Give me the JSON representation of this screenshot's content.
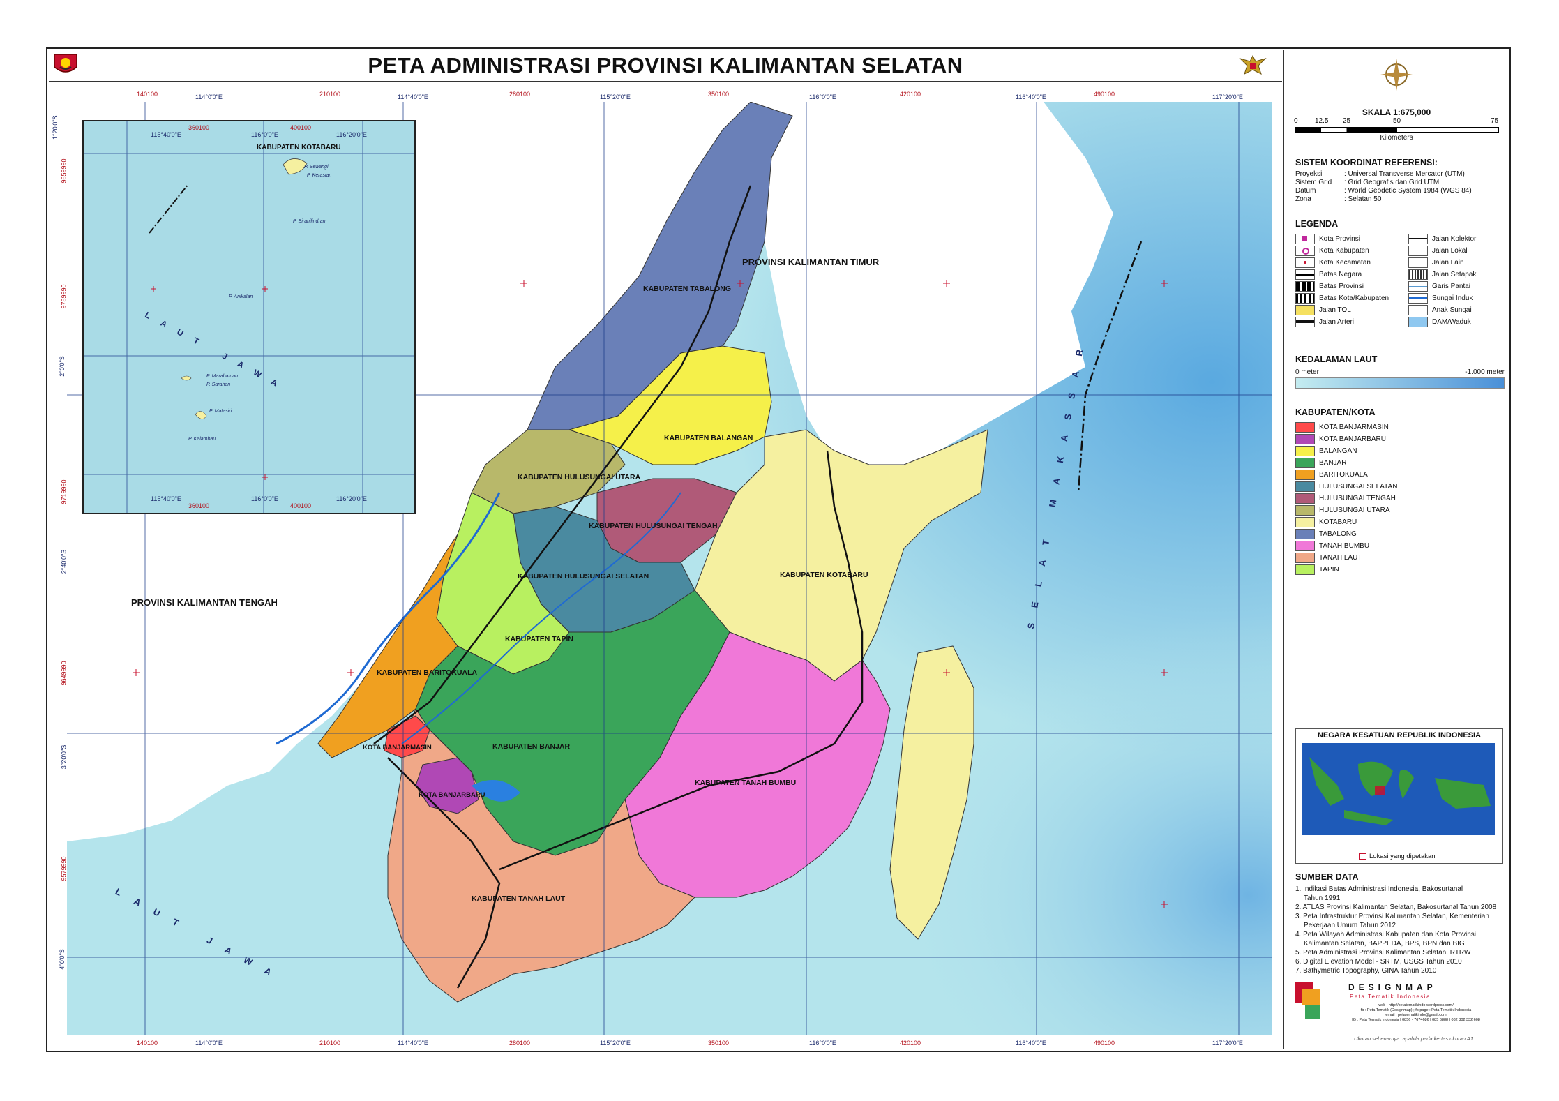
{
  "title": "PETA ADMINISTRASI PROVINSI KALIMANTAN SELATAN",
  "colors": {
    "sea_light": "#b4e4ec",
    "sea_deep": "#5aa9e0",
    "land_outside": "#ffffff",
    "grid": "#1b3b8a",
    "tick_red": "#b3111b"
  },
  "top_ticks": [
    "140100",
    "114°0'0\"E",
    "210100",
    "114°40'0\"E",
    "280100",
    "115°20'0\"E",
    "350100",
    "116°0'0\"E",
    "420100",
    "116°40'0\"E",
    "490100",
    "117°20'0\"E"
  ],
  "left_ticks": [
    "1°20'0\"S",
    "9859990",
    "9789990",
    "2°0'0\"S",
    "9719990",
    "2°40'0\"S",
    "9649990",
    "3°20'0\"S",
    "9579990",
    "4°0'0\"S"
  ],
  "map_labels": {
    "kaltim": "PROVINSI KALIMANTAN TIMUR",
    "kalteng": "PROVINSI KALIMANTAN TENGAH",
    "laut_jawa": "LAUT JAWA",
    "selat_makassar": "SELAT MAKASSAR",
    "kab_tabalong": "KABUPATEN TABALONG",
    "kab_balangan": "KABUPATEN BALANGAN",
    "kab_hsu": "KABUPATEN HULUSUNGAI UTARA",
    "kab_hst": "KABUPATEN HULUSUNGAI TENGAH",
    "kab_hss": "KABUPATEN HULUSUNGAI SELATAN",
    "kab_tapin": "KABUPATEN TAPIN",
    "kab_batola": "KABUPATEN BARITOKUALA",
    "kab_banjar": "KABUPATEN BANJAR",
    "kota_bjm": "KOTA BANJARMASIN",
    "kota_bjb": "KOTA BANJARBARU",
    "kab_tanahlaut": "KABUPATEN TANAH LAUT",
    "kab_tanahbumbu": "KABUPATEN TANAH BUMBU",
    "kab_kotabaru": "KABUPATEN KOTABARU"
  },
  "inset": {
    "title": "KABUPATEN KOTABARU",
    "sea": "LAUT JAWA",
    "top_ticks": [
      "360100",
      "400100"
    ],
    "top_deg": [
      "115°40'0\"E",
      "116°0'0\"E",
      "116°20'0\"E"
    ],
    "islands": [
      "P. Sewangi",
      "P. Kerasian",
      "P. Marabatuan",
      "P. Sarahan",
      "P. Matasiri",
      "P. Kalambau",
      "P. Birahilindran",
      "P. Anikalan"
    ]
  },
  "scale": {
    "label": "SKALA 1:675,000",
    "ticks": [
      "0",
      "12.5",
      "25",
      "50",
      "75"
    ],
    "unit": "Kilometers"
  },
  "crs": {
    "title": "SISTEM KOORDINAT REFERENSI:",
    "rows": [
      {
        "k": "Proyeksi",
        "v": ": Universal Transverse Mercator (UTM)"
      },
      {
        "k": "Sistem Grid",
        "v": ": Grid Geografis dan Grid UTM"
      },
      {
        "k": "Datum",
        "v": ": World Geodetic System 1984 (WGS 84)"
      },
      {
        "k": "Zona",
        "v": ": Selatan 50"
      }
    ]
  },
  "legend": {
    "title": "LEGENDA",
    "left": [
      "Kota Provinsi",
      "Kota Kabupaten",
      "Kota Kecamatan",
      "Batas Negara",
      "Batas Provinsi",
      "Batas Kota/Kabupaten",
      "Jalan TOL",
      "Jalan Arteri"
    ],
    "right": [
      "Jalan Kolektor",
      "Jalan Lokal",
      "Jalan Lain",
      "Jalan Setapak",
      "Garis Pantai",
      "Sungai Induk",
      "Anak Sungai",
      "DAM/Waduk"
    ]
  },
  "depth": {
    "title": "KEDALAMAN LAUT",
    "min": "0 meter",
    "max": "-1.000 meter"
  },
  "kabupaten": {
    "title": "KABUPATEN/KOTA",
    "items": [
      {
        "name": "KOTA BANJARMASIN",
        "color": "#ff4a4a"
      },
      {
        "name": "KOTA BANJARBARU",
        "color": "#b048b5"
      },
      {
        "name": "BALANGAN",
        "color": "#f5f04a"
      },
      {
        "name": "BANJAR",
        "color": "#3aa55a"
      },
      {
        "name": "BARITOKUALA",
        "color": "#f0a020"
      },
      {
        "name": "HULUSUNGAI SELATAN",
        "color": "#4a8aa0"
      },
      {
        "name": "HULUSUNGAI TENGAH",
        "color": "#b05a78"
      },
      {
        "name": "HULUSUNGAI UTARA",
        "color": "#b8b86a"
      },
      {
        "name": "KOTABARU",
        "color": "#f5f0a0"
      },
      {
        "name": "TABALONG",
        "color": "#6a80b8"
      },
      {
        "name": "TANAH BUMBU",
        "color": "#f078d8"
      },
      {
        "name": "TANAH LAUT",
        "color": "#f0a888"
      },
      {
        "name": "TAPIN",
        "color": "#b8f060"
      }
    ]
  },
  "nkri": {
    "title": "NEGARA KESATUAN REPUBLIK INDONESIA",
    "caption": "Lokasi yang dipetakan"
  },
  "sources": {
    "title": "SUMBER DATA",
    "items": [
      "1. Indikasi Batas Administrasi Indonesia, Bakosurtanal",
      "    Tahun 1991",
      "2. ATLAS Provinsi Kalimantan Selatan, Bakosurtanal Tahun 2008",
      "3. Peta Infrastruktur Provinsi  Kalimantan Selatan, Kementerian",
      "    Pekerjaan Umum Tahun 2012",
      "4. Peta Wilayah Administrasi Kabupaten dan Kota Provinsi",
      "    Kalimantan Selatan, BAPPEDA, BPS, BPN dan BIG",
      "5. Peta Administrasi Provinsi Kalimantan Selatan. RTRW",
      "6. Digital Elevation Model - SRTM, USGS Tahun 2010",
      "7. Bathymetric Topography, GINA Tahun 2010"
    ]
  },
  "brand": {
    "name": "DESIGNMAP",
    "tagline": "Peta Tematik Indonesia",
    "lines": [
      "web : http://petatematikindo.wordpress.com/",
      "fb : Peta Tematik (Designmap) ; fb page : Peta Tematik Indonesia",
      "email : petatematikindo@gmail.com",
      "IG : Peta Tematik Indonesia | 0856 - 7674686 | 085 6888 | 082 302 332 608"
    ],
    "note": "Ukuran sebenarnya: apabila pada kertas ukuran A1"
  }
}
